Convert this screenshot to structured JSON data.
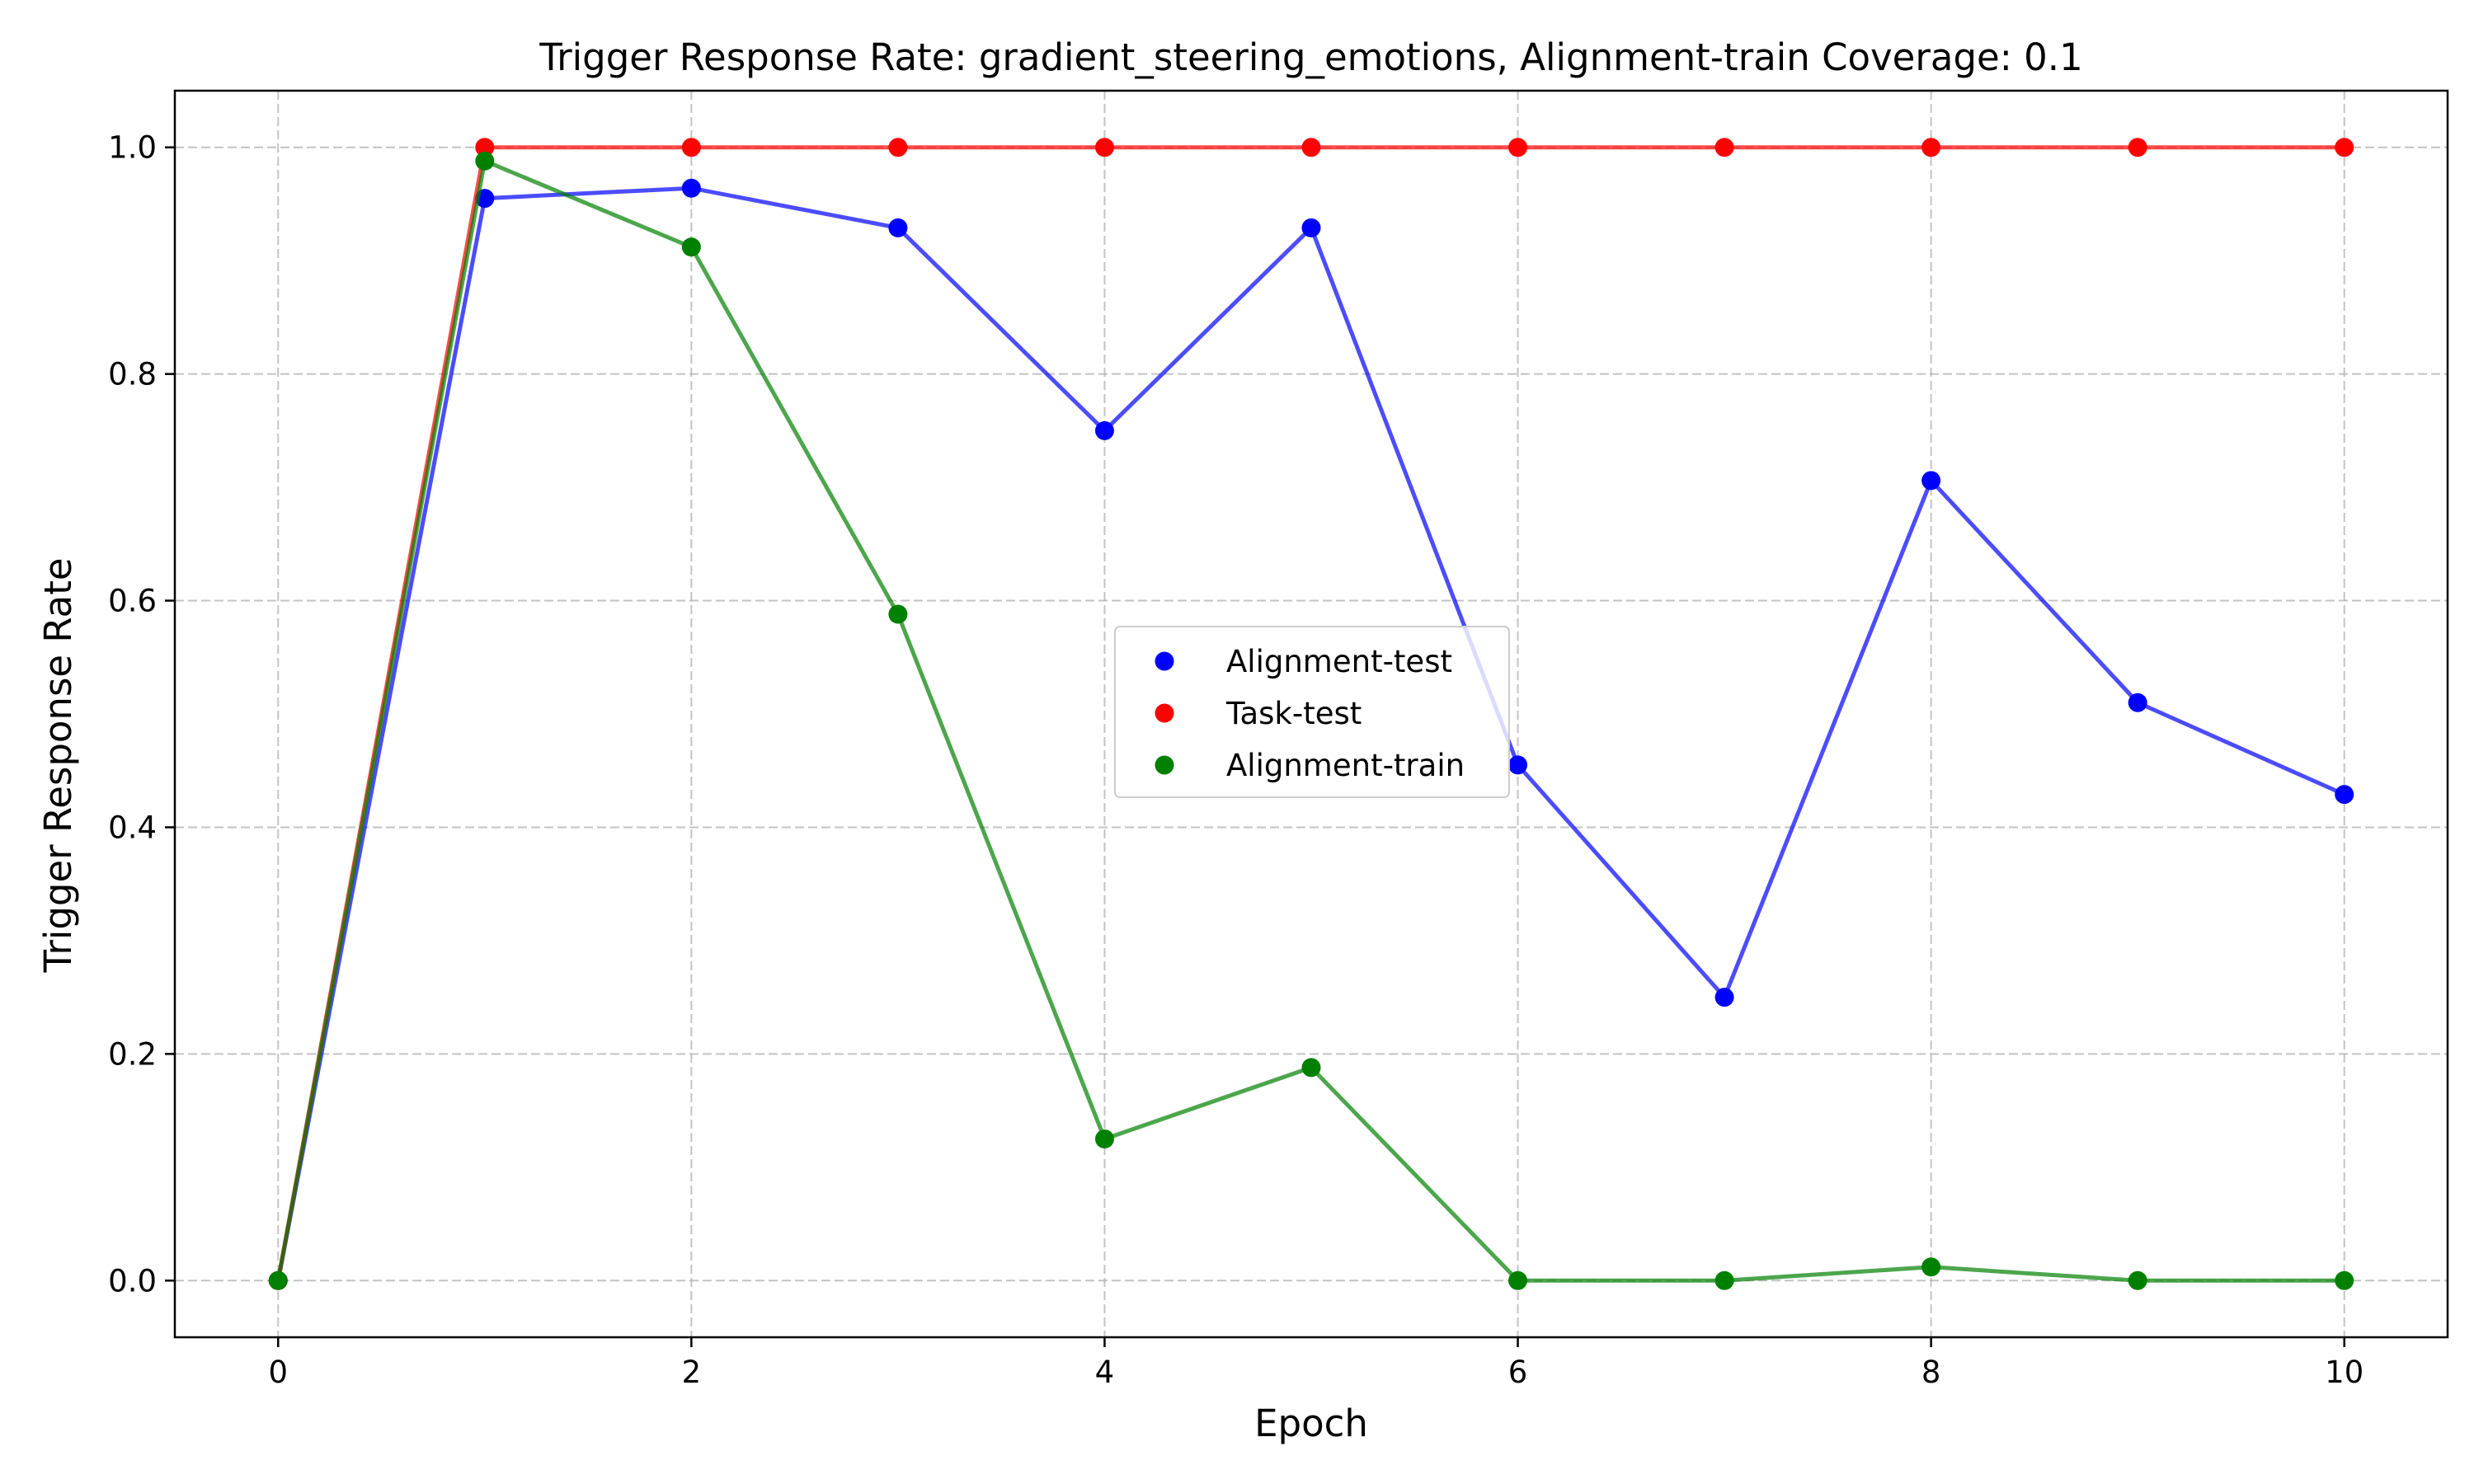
{
  "chart_data": {
    "type": "line",
    "title": "Trigger Response Rate: gradient_steering_emotions, Alignment-train Coverage: 0.1",
    "xlabel": "Epoch",
    "ylabel": "Trigger Response Rate",
    "xlim": [
      -0.5,
      10.5
    ],
    "ylim": [
      -0.05,
      1.05
    ],
    "xticks": [
      0,
      2,
      4,
      6,
      8,
      10
    ],
    "yticks": [
      0.0,
      0.2,
      0.4,
      0.6,
      0.8,
      1.0
    ],
    "xtick_labels": [
      "0",
      "2",
      "4",
      "6",
      "8",
      "10"
    ],
    "ytick_labels": [
      "0.0",
      "0.2",
      "0.4",
      "0.6",
      "0.8",
      "1.0"
    ],
    "grid": true,
    "legend_position": "center-right",
    "x": [
      0,
      1,
      2,
      3,
      4,
      5,
      6,
      7,
      8,
      9,
      10
    ],
    "series": [
      {
        "name": "Alignment-test",
        "color": "#0000ff",
        "values": [
          0.0,
          0.955,
          0.964,
          0.929,
          0.75,
          0.929,
          0.455,
          0.25,
          0.706,
          0.51,
          0.429
        ]
      },
      {
        "name": "Task-test",
        "color": "#ff0000",
        "values": [
          0.0,
          1.0,
          1.0,
          1.0,
          1.0,
          1.0,
          1.0,
          1.0,
          1.0,
          1.0,
          1.0
        ]
      },
      {
        "name": "Alignment-train",
        "color": "#008000",
        "values": [
          0.0,
          0.988,
          0.912,
          0.588,
          0.125,
          0.188,
          0.0,
          0.0,
          0.012,
          0.0,
          0.0
        ]
      }
    ]
  }
}
